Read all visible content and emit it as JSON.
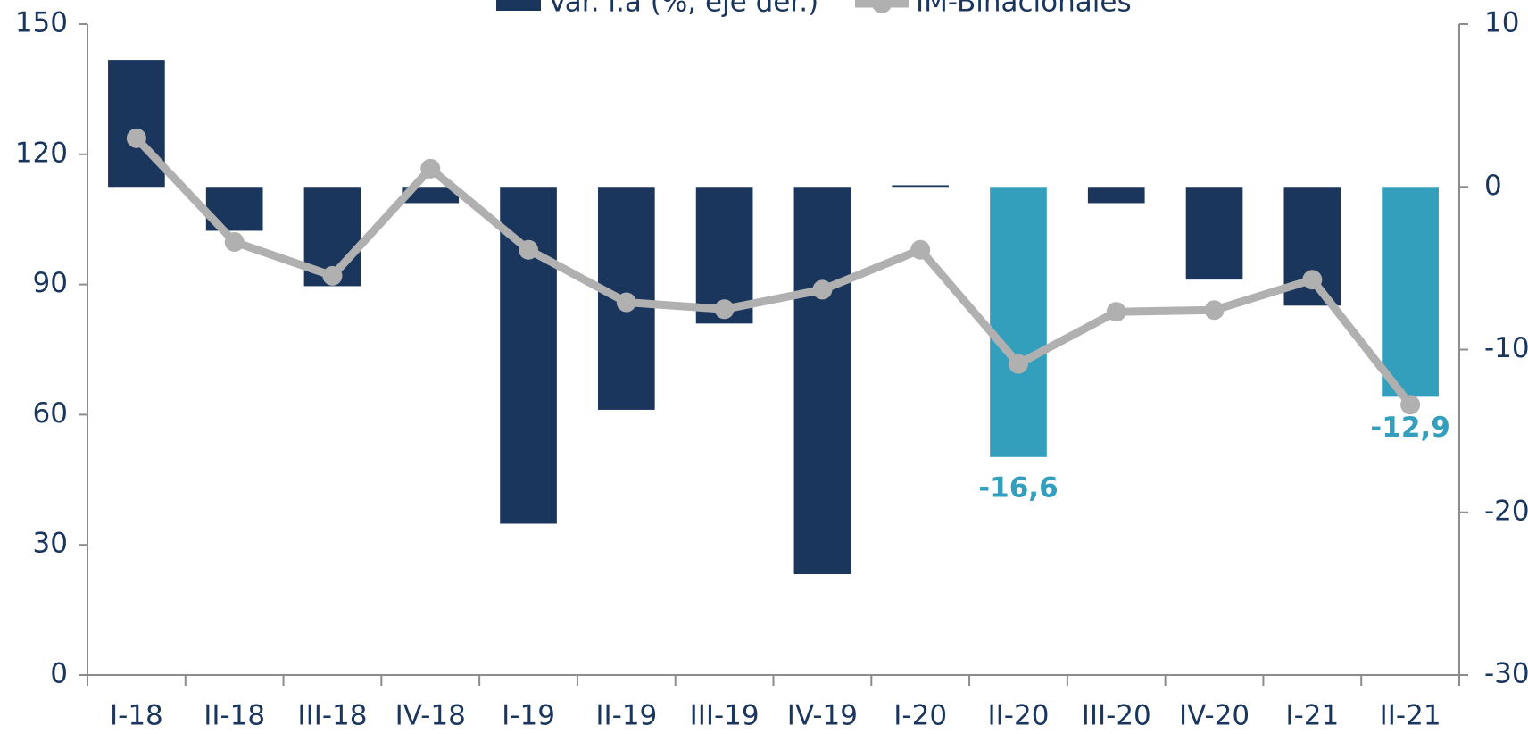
{
  "chart_data": {
    "type": "bar-line",
    "categories": [
      "I-18",
      "II-18",
      "III-18",
      "IV-18",
      "I-19",
      "II-19",
      "III-19",
      "IV-19",
      "I-20",
      "II-20",
      "III-20",
      "IV-20",
      "I-21",
      "II-21"
    ],
    "series": [
      {
        "name": "Var. i.a (%, eje der.)",
        "type": "bar",
        "axis": "y2",
        "color": "#1b365d",
        "colors": [
          "#1b365d",
          "#1b365d",
          "#1b365d",
          "#1b365d",
          "#1b365d",
          "#1b365d",
          "#1b365d",
          "#1b365d",
          "#1b365d",
          "#349fbd",
          "#1b365d",
          "#1b365d",
          "#1b365d",
          "#349fbd"
        ],
        "values": [
          7.8,
          -2.7,
          -6.1,
          -1.0,
          -20.7,
          -13.7,
          -8.4,
          -23.8,
          0.1,
          -16.6,
          -1.0,
          -5.7,
          -7.3,
          -12.9
        ],
        "value_labels": [
          null,
          null,
          null,
          null,
          null,
          null,
          null,
          null,
          null,
          "-16,6",
          null,
          null,
          null,
          "-12,9"
        ]
      },
      {
        "name": "IM-Binacionales",
        "type": "line",
        "axis": "y",
        "color": "#b0b0b0",
        "values": [
          123.7,
          99.8,
          92.0,
          116.7,
          98.0,
          85.9,
          84.3,
          88.8,
          98.0,
          71.7,
          83.7,
          84.1,
          91.1,
          62.3
        ]
      }
    ],
    "ylim": [
      0,
      150
    ],
    "yticks": [
      0,
      30,
      60,
      90,
      120,
      150
    ],
    "y2lim": [
      -30,
      10
    ],
    "y2ticks": [
      -30,
      -20,
      -10,
      0,
      10
    ]
  }
}
